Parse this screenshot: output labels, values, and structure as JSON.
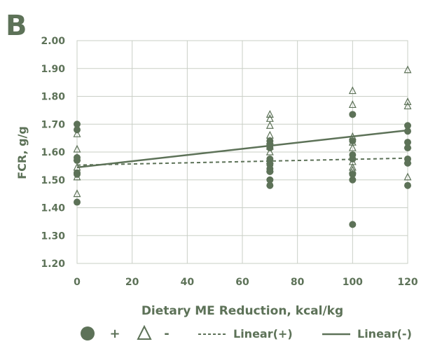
{
  "panel_label": "B",
  "colors": {
    "primary": "#5d7258",
    "grid": "#c9cfc6"
  },
  "chart_data": {
    "type": "scatter",
    "title": "",
    "xlabel": "Dietary ME Reduction, kcal/kg",
    "ylabel": "FCR, g/g",
    "xlim": [
      0,
      120
    ],
    "ylim": [
      1.2,
      2.0
    ],
    "xticks": [
      0,
      20,
      40,
      60,
      80,
      100,
      120
    ],
    "yticks": [
      1.2,
      1.3,
      1.4,
      1.5,
      1.6,
      1.7,
      1.8,
      1.9,
      2.0
    ],
    "xtick_labels": [
      "0",
      "20",
      "40",
      "60",
      "80",
      "100",
      "120"
    ],
    "ytick_labels": [
      "1.20",
      "1.30",
      "1.40",
      "1.50",
      "1.60",
      "1.70",
      "1.80",
      "1.90",
      "2.00"
    ],
    "grid": true,
    "legend_position": "bottom",
    "series": [
      {
        "name": "+",
        "marker": "circle",
        "points": [
          [
            0,
            1.7
          ],
          [
            0,
            1.68
          ],
          [
            0,
            1.58
          ],
          [
            0,
            1.57
          ],
          [
            0,
            1.525
          ],
          [
            0,
            1.52
          ],
          [
            0,
            1.42
          ],
          [
            70,
            1.64
          ],
          [
            70,
            1.625
          ],
          [
            70,
            1.615
          ],
          [
            70,
            1.575
          ],
          [
            70,
            1.555
          ],
          [
            70,
            1.54
          ],
          [
            70,
            1.53
          ],
          [
            70,
            1.5
          ],
          [
            70,
            1.48
          ],
          [
            100,
            1.735
          ],
          [
            100,
            1.64
          ],
          [
            100,
            1.59
          ],
          [
            100,
            1.575
          ],
          [
            100,
            1.52
          ],
          [
            100,
            1.5
          ],
          [
            100,
            1.34
          ],
          [
            120,
            1.695
          ],
          [
            120,
            1.675
          ],
          [
            120,
            1.635
          ],
          [
            120,
            1.615
          ],
          [
            120,
            1.575
          ],
          [
            120,
            1.56
          ],
          [
            120,
            1.48
          ]
        ]
      },
      {
        "name": "-",
        "marker": "triangle",
        "points": [
          [
            0,
            1.665
          ],
          [
            0,
            1.61
          ],
          [
            0,
            1.58
          ],
          [
            0,
            1.545
          ],
          [
            0,
            1.51
          ],
          [
            0,
            1.45
          ],
          [
            70,
            1.735
          ],
          [
            70,
            1.72
          ],
          [
            70,
            1.695
          ],
          [
            70,
            1.66
          ],
          [
            70,
            1.64
          ],
          [
            70,
            1.62
          ],
          [
            70,
            1.6
          ],
          [
            70,
            1.57
          ],
          [
            70,
            1.54
          ],
          [
            100,
            1.82
          ],
          [
            100,
            1.77
          ],
          [
            100,
            1.655
          ],
          [
            100,
            1.635
          ],
          [
            100,
            1.615
          ],
          [
            100,
            1.565
          ],
          [
            100,
            1.545
          ],
          [
            100,
            1.535
          ],
          [
            120,
            1.895
          ],
          [
            120,
            1.78
          ],
          [
            120,
            1.765
          ],
          [
            120,
            1.625
          ],
          [
            120,
            1.57
          ],
          [
            120,
            1.51
          ]
        ]
      }
    ],
    "fit_lines": [
      {
        "name": "Linear(+)",
        "style": "dashed",
        "x": [
          0,
          120
        ],
        "y": [
          1.553,
          1.578
        ]
      },
      {
        "name": "Linear(-)",
        "style": "solid",
        "x": [
          0,
          120
        ],
        "y": [
          1.545,
          1.678
        ]
      }
    ]
  }
}
